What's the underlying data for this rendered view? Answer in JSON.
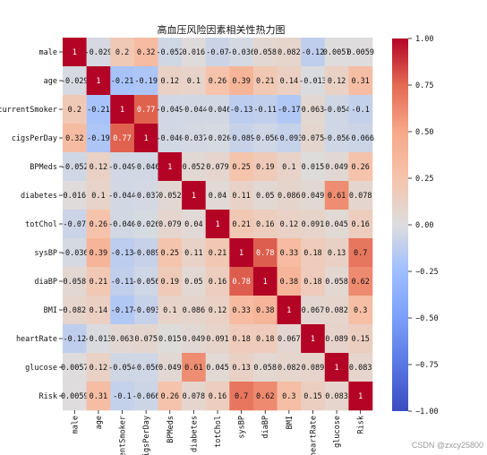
{
  "watermark": "CSDN @zxcy25800",
  "chart_data": {
    "type": "heatmap",
    "title": "高血压风险因素相关性热力图",
    "rows": [
      "male",
      "age",
      "currentSmoker",
      "cigsPerDay",
      "BPMeds",
      "diabetes",
      "totChol",
      "sysBP",
      "diaBP",
      "BMI",
      "heartRate",
      "glucose",
      "Risk"
    ],
    "columns": [
      "male",
      "age",
      "currentSmoker",
      "cigsPerDay",
      "BPMeds",
      "diabetes",
      "totChol",
      "sysBP",
      "diaBP",
      "BMI",
      "heartRate",
      "glucose",
      "Risk"
    ],
    "values": [
      [
        1,
        -0.029,
        0.2,
        0.32,
        -0.052,
        0.016,
        -0.07,
        -0.036,
        0.058,
        0.082,
        -0.12,
        0.0057,
        0.0059
      ],
      [
        -0.029,
        1,
        -0.21,
        -0.19,
        0.12,
        0.1,
        0.26,
        0.39,
        0.21,
        0.14,
        -0.013,
        0.12,
        0.31
      ],
      [
        0.2,
        -0.21,
        1,
        0.77,
        -0.049,
        -0.044,
        -0.046,
        -0.13,
        -0.11,
        -0.17,
        0.063,
        -0.054,
        -0.1
      ],
      [
        0.32,
        -0.19,
        0.77,
        1,
        -0.046,
        -0.037,
        -0.026,
        -0.089,
        -0.056,
        -0.093,
        0.075,
        -0.056,
        -0.066
      ],
      [
        -0.052,
        0.12,
        -0.049,
        -0.046,
        1,
        0.052,
        0.079,
        0.25,
        0.19,
        0.1,
        0.015,
        0.049,
        0.26
      ],
      [
        0.016,
        0.1,
        -0.044,
        -0.037,
        0.052,
        1,
        0.04,
        0.11,
        0.05,
        0.086,
        0.049,
        0.61,
        0.078
      ],
      [
        -0.07,
        0.26,
        -0.046,
        -0.026,
        0.079,
        0.04,
        1,
        0.21,
        0.16,
        0.12,
        0.091,
        0.045,
        0.16
      ],
      [
        -0.036,
        0.39,
        -0.13,
        -0.089,
        0.25,
        0.11,
        0.21,
        1,
        0.78,
        0.33,
        0.18,
        0.13,
        0.7
      ],
      [
        0.058,
        0.21,
        -0.11,
        -0.056,
        0.19,
        0.05,
        0.16,
        0.78,
        1,
        0.38,
        0.18,
        0.058,
        0.62
      ],
      [
        0.082,
        0.14,
        -0.17,
        -0.093,
        0.1,
        0.086,
        0.12,
        0.33,
        0.38,
        1,
        0.067,
        0.082,
        0.3
      ],
      [
        -0.12,
        -0.013,
        0.063,
        0.075,
        0.015,
        0.049,
        0.091,
        0.18,
        0.18,
        0.067,
        1,
        0.089,
        0.15
      ],
      [
        0.0057,
        0.12,
        -0.054,
        -0.056,
        0.049,
        0.61,
        0.045,
        0.13,
        0.058,
        0.082,
        0.089,
        1,
        0.083
      ],
      [
        0.0059,
        0.31,
        -0.1,
        -0.066,
        0.26,
        0.078,
        0.16,
        0.7,
        0.62,
        0.3,
        0.15,
        0.083,
        1
      ]
    ],
    "colormap": "coolwarm",
    "vmin": -1,
    "vmax": 1,
    "colorbar_ticks": [
      1.0,
      0.75,
      0.5,
      0.25,
      0.0,
      -0.25,
      -0.5,
      -0.75,
      -1.0
    ],
    "colorbar_tick_labels": [
      "1.00",
      "0.75",
      "0.50",
      "0.25",
      "0.00",
      "−0.25",
      "−0.50",
      "−0.75",
      "−1.00"
    ],
    "annotated": true,
    "colors": {
      "low": "#3b4cc0",
      "mid": "#dddddd",
      "high": "#b40426"
    }
  }
}
